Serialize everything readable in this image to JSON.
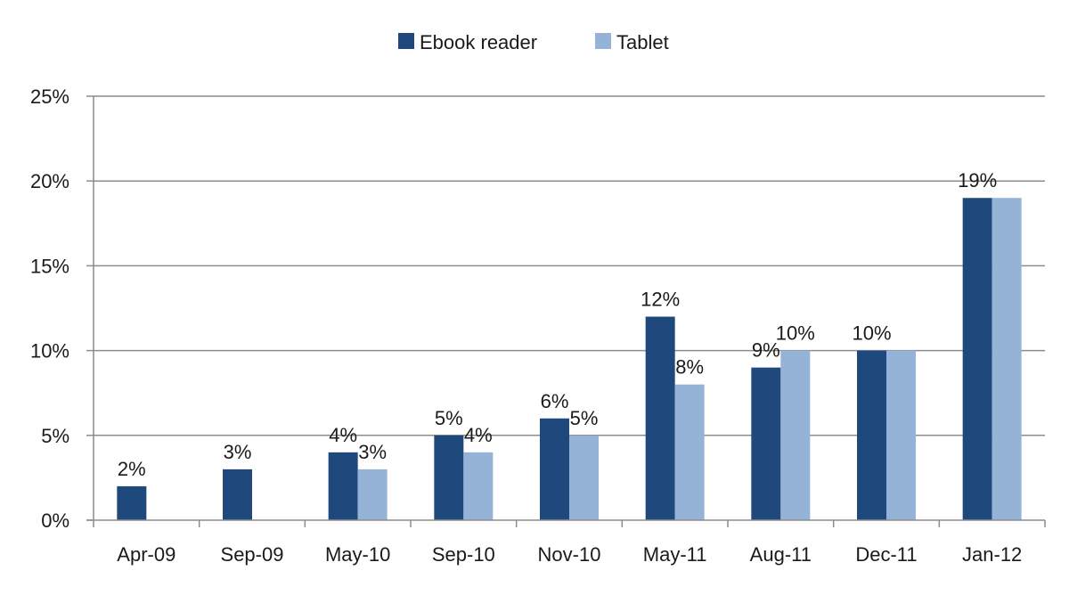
{
  "colors": {
    "ebook": "#1F497D",
    "tablet": "#95B3D7",
    "grid": "#8C8C8C",
    "axis": "#8C8C8C",
    "text": "#1a1a1a"
  },
  "chart_data": {
    "type": "bar",
    "title": "",
    "xlabel": "",
    "ylabel": "",
    "categories": [
      "Apr-09",
      "Sep-09",
      "May-10",
      "Sep-10",
      "Nov-10",
      "May-11",
      "Aug-11",
      "Dec-11",
      "Jan-12"
    ],
    "series": [
      {
        "name": "Ebook reader",
        "values": [
          2,
          3,
          4,
          5,
          6,
          12,
          9,
          10,
          19
        ],
        "labels": [
          "2%",
          "3%",
          "4%",
          "5%",
          "6%",
          "12%",
          "9%",
          "10%",
          "19%"
        ]
      },
      {
        "name": "Tablet",
        "values": [
          null,
          null,
          3,
          4,
          5,
          8,
          10,
          10,
          19
        ],
        "labels": [
          "",
          "",
          "3%",
          "4%",
          "5%",
          "8%",
          "10%",
          "",
          ""
        ]
      }
    ],
    "ylim": [
      0,
      25
    ],
    "yticks": [
      0,
      5,
      10,
      15,
      20,
      25
    ],
    "ytick_labels": [
      "0%",
      "5%",
      "10%",
      "15%",
      "20%",
      "25%"
    ],
    "grid": true,
    "legend_position": "top-center"
  }
}
